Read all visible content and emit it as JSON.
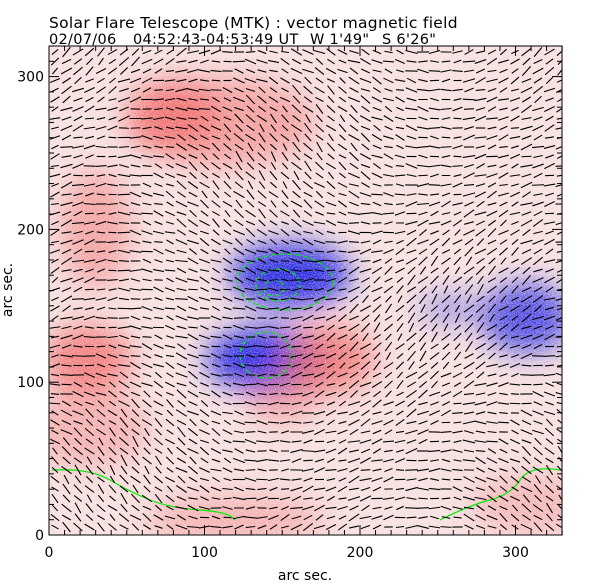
{
  "chart_data": {
    "type": "heatmap",
    "title": "Solar Flare Telescope (MTK) : vector magnetic field",
    "subtitle": {
      "date": "02/07/06",
      "time_range": "04:52:43-04:53:49 UT",
      "position_w": "W 1'49\"",
      "position_s": "S 6'26\""
    },
    "xlabel": "arc sec.",
    "ylabel": "arc sec.",
    "xlim": [
      0,
      330
    ],
    "ylim": [
      0,
      320
    ],
    "x_ticks": [
      "0",
      "100",
      "200",
      "300"
    ],
    "y_ticks": [
      "0",
      "100",
      "200",
      "300"
    ],
    "minor_tick_step": 10,
    "colors": {
      "positive": "#f06060",
      "negative": "#2020e0",
      "background": "#f7dede",
      "contour": "#00ee00",
      "vectors": "#000000"
    },
    "features": [
      {
        "polarity": "negative",
        "x": 155,
        "y": 170,
        "strength": "strong"
      },
      {
        "polarity": "negative",
        "x": 140,
        "y": 115,
        "strength": "strong"
      },
      {
        "polarity": "negative",
        "x": 307,
        "y": 142,
        "strength": "medium"
      },
      {
        "polarity": "negative",
        "x": 258,
        "y": 148,
        "strength": "weak"
      },
      {
        "polarity": "positive",
        "x": 80,
        "y": 275,
        "strength": "medium"
      },
      {
        "polarity": "positive",
        "x": 25,
        "y": 115,
        "strength": "medium"
      },
      {
        "polarity": "positive",
        "x": 180,
        "y": 115,
        "strength": "medium"
      }
    ]
  }
}
